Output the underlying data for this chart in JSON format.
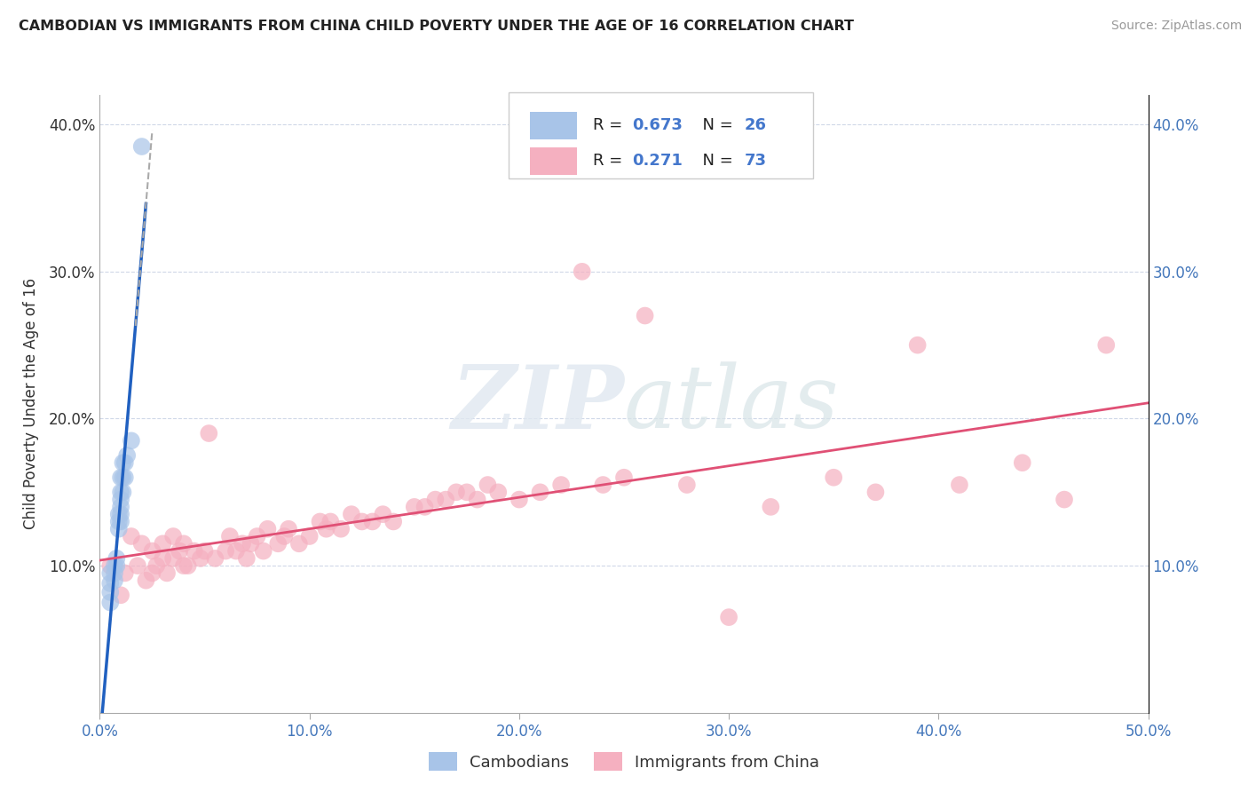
{
  "title": "CAMBODIAN VS IMMIGRANTS FROM CHINA CHILD POVERTY UNDER THE AGE OF 16 CORRELATION CHART",
  "source": "Source: ZipAtlas.com",
  "ylabel": "Child Poverty Under the Age of 16",
  "xlim": [
    0.0,
    0.5
  ],
  "ylim": [
    0.0,
    0.42
  ],
  "xticks": [
    0.0,
    0.1,
    0.2,
    0.3,
    0.4,
    0.5
  ],
  "yticks": [
    0.1,
    0.2,
    0.3,
    0.4
  ],
  "xticklabels": [
    "0.0%",
    "10.0%",
    "20.0%",
    "30.0%",
    "40.0%",
    "50.0%"
  ],
  "yticklabels": [
    "10.0%",
    "20.0%",
    "30.0%",
    "40.0%"
  ],
  "right_yticklabels": [
    "10.0%",
    "20.0%",
    "30.0%",
    "40.0%"
  ],
  "right_yticks": [
    0.1,
    0.2,
    0.3,
    0.4
  ],
  "cambodian_color": "#a8c4e8",
  "china_color": "#f5b0c0",
  "cambodian_line_color": "#2060c0",
  "china_line_color": "#e05075",
  "legend_R1": "0.673",
  "legend_N1": "26",
  "legend_R2": "0.271",
  "legend_N2": "73",
  "watermark_zip": "ZIP",
  "watermark_atlas": "atlas",
  "cambodian_x": [
    0.005,
    0.005,
    0.005,
    0.005,
    0.007,
    0.007,
    0.007,
    0.008,
    0.008,
    0.009,
    0.009,
    0.009,
    0.01,
    0.01,
    0.01,
    0.01,
    0.01,
    0.01,
    0.011,
    0.011,
    0.011,
    0.012,
    0.012,
    0.013,
    0.015,
    0.02
  ],
  "cambodian_y": [
    0.075,
    0.082,
    0.088,
    0.095,
    0.09,
    0.095,
    0.1,
    0.1,
    0.105,
    0.125,
    0.13,
    0.135,
    0.13,
    0.135,
    0.14,
    0.145,
    0.15,
    0.16,
    0.15,
    0.16,
    0.17,
    0.16,
    0.17,
    0.175,
    0.185,
    0.385
  ],
  "china_x": [
    0.005,
    0.01,
    0.012,
    0.015,
    0.018,
    0.02,
    0.022,
    0.025,
    0.025,
    0.027,
    0.03,
    0.03,
    0.032,
    0.035,
    0.035,
    0.038,
    0.04,
    0.04,
    0.042,
    0.045,
    0.048,
    0.05,
    0.052,
    0.055,
    0.06,
    0.062,
    0.065,
    0.068,
    0.07,
    0.072,
    0.075,
    0.078,
    0.08,
    0.085,
    0.088,
    0.09,
    0.095,
    0.1,
    0.105,
    0.108,
    0.11,
    0.115,
    0.12,
    0.125,
    0.13,
    0.135,
    0.14,
    0.15,
    0.155,
    0.16,
    0.165,
    0.17,
    0.175,
    0.18,
    0.185,
    0.19,
    0.2,
    0.21,
    0.22,
    0.23,
    0.24,
    0.25,
    0.26,
    0.28,
    0.3,
    0.32,
    0.35,
    0.37,
    0.39,
    0.41,
    0.44,
    0.46,
    0.48
  ],
  "china_y": [
    0.1,
    0.08,
    0.095,
    0.12,
    0.1,
    0.115,
    0.09,
    0.095,
    0.11,
    0.1,
    0.105,
    0.115,
    0.095,
    0.105,
    0.12,
    0.11,
    0.1,
    0.115,
    0.1,
    0.11,
    0.105,
    0.11,
    0.19,
    0.105,
    0.11,
    0.12,
    0.11,
    0.115,
    0.105,
    0.115,
    0.12,
    0.11,
    0.125,
    0.115,
    0.12,
    0.125,
    0.115,
    0.12,
    0.13,
    0.125,
    0.13,
    0.125,
    0.135,
    0.13,
    0.13,
    0.135,
    0.13,
    0.14,
    0.14,
    0.145,
    0.145,
    0.15,
    0.15,
    0.145,
    0.155,
    0.15,
    0.145,
    0.15,
    0.155,
    0.3,
    0.155,
    0.16,
    0.27,
    0.155,
    0.065,
    0.14,
    0.16,
    0.15,
    0.25,
    0.155,
    0.17,
    0.145,
    0.25
  ]
}
